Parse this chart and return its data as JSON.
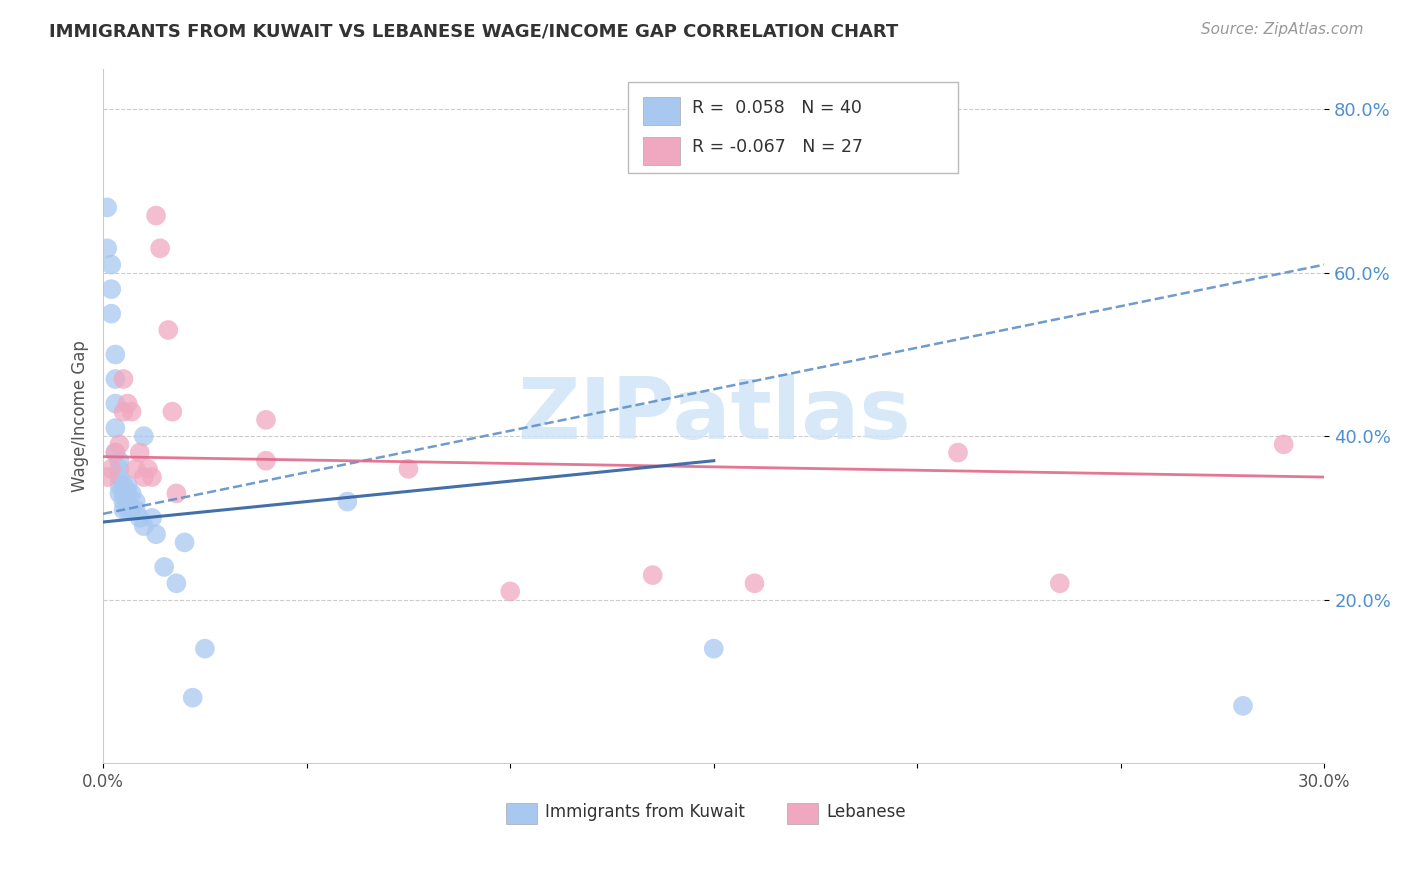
{
  "title": "IMMIGRANTS FROM KUWAIT VS LEBANESE WAGE/INCOME GAP CORRELATION CHART",
  "source": "Source: ZipAtlas.com",
  "ylabel": "Wage/Income Gap",
  "xlim": [
    0.0,
    0.3
  ],
  "ylim": [
    0.0,
    0.85
  ],
  "yticks": [
    0.2,
    0.4,
    0.6,
    0.8
  ],
  "ytick_labels": [
    "20.0%",
    "40.0%",
    "60.0%",
    "80.0%"
  ],
  "xticks": [
    0.0,
    0.05,
    0.1,
    0.15,
    0.2,
    0.25,
    0.3
  ],
  "xtick_labels": [
    "0.0%",
    "",
    "",
    "",
    "",
    "",
    "30.0%"
  ],
  "kuwait_R": 0.058,
  "kuwait_N": 40,
  "lebanese_R": -0.067,
  "lebanese_N": 27,
  "kuwait_color": "#a8c8f0",
  "lebanese_color": "#f0a8c0",
  "kuwait_line_color": "#6090c8",
  "lebanese_line_color": "#e06888",
  "watermark_text": "ZIPatlas",
  "watermark_color": "#d0e4f8",
  "kuwait_x": [
    0.001,
    0.001,
    0.002,
    0.002,
    0.002,
    0.003,
    0.003,
    0.003,
    0.003,
    0.003,
    0.004,
    0.004,
    0.004,
    0.004,
    0.004,
    0.005,
    0.005,
    0.005,
    0.005,
    0.006,
    0.006,
    0.006,
    0.006,
    0.007,
    0.007,
    0.008,
    0.008,
    0.009,
    0.01,
    0.01,
    0.012,
    0.013,
    0.015,
    0.018,
    0.02,
    0.022,
    0.025,
    0.06,
    0.15,
    0.28
  ],
  "kuwait_y": [
    0.68,
    0.63,
    0.61,
    0.58,
    0.55,
    0.5,
    0.47,
    0.44,
    0.41,
    0.38,
    0.37,
    0.36,
    0.35,
    0.34,
    0.33,
    0.34,
    0.33,
    0.32,
    0.31,
    0.34,
    0.33,
    0.32,
    0.31,
    0.33,
    0.31,
    0.32,
    0.31,
    0.3,
    0.4,
    0.29,
    0.3,
    0.28,
    0.24,
    0.22,
    0.27,
    0.08,
    0.14,
    0.32,
    0.14,
    0.07
  ],
  "lebanese_x": [
    0.001,
    0.002,
    0.003,
    0.004,
    0.005,
    0.005,
    0.006,
    0.007,
    0.008,
    0.009,
    0.01,
    0.011,
    0.012,
    0.013,
    0.014,
    0.016,
    0.017,
    0.018,
    0.04,
    0.04,
    0.075,
    0.1,
    0.135,
    0.16,
    0.21,
    0.235,
    0.29
  ],
  "lebanese_y": [
    0.35,
    0.36,
    0.38,
    0.39,
    0.43,
    0.47,
    0.44,
    0.43,
    0.36,
    0.38,
    0.35,
    0.36,
    0.35,
    0.67,
    0.63,
    0.53,
    0.43,
    0.33,
    0.42,
    0.37,
    0.36,
    0.21,
    0.23,
    0.22,
    0.38,
    0.22,
    0.39
  ],
  "kuwait_line_y0": 0.305,
  "kuwait_line_y1": 0.61,
  "lebanese_line_y0": 0.375,
  "lebanese_line_y1": 0.35,
  "kuwait_solid_line_y0": 0.295,
  "kuwait_solid_line_y1": 0.37,
  "kuwait_solid_line_x1": 0.15
}
